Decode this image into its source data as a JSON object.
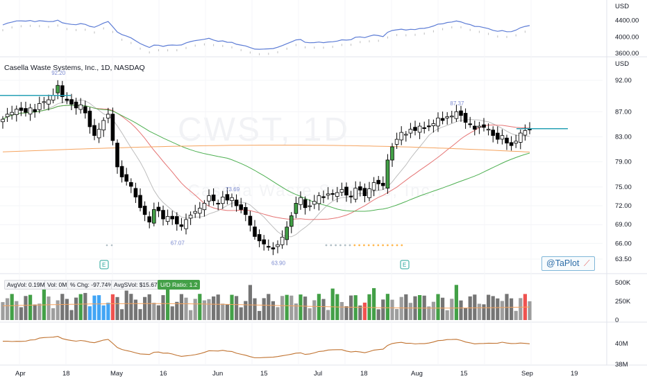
{
  "header": {
    "symbol_title": "Casella Waste Systems, Inc., 1D, NASDAQ",
    "watermark": "CWST, 1D",
    "watermark_sub": "Casella Waste Systems, Inc.",
    "brand_label": "@TaPlot"
  },
  "stats": {
    "avg_vol": "AvgVol: 0.19M",
    "vol": "Vol: 0M",
    "pct_chg": "% Chg: -97.74%",
    "avg_dollar_vol": "AvgSVol: $15.67M",
    "ud_ratio": "U/D Ratio: 1.2"
  },
  "colors": {
    "up": "#43a047",
    "down": "#000000",
    "ma_red": "#e57373",
    "ma_green": "#4caf50",
    "ma_orange": "#f5a25d",
    "ma_gray": "#bdbdbd",
    "rs_line": "#5b7bd5",
    "teal": "#26a0b5",
    "vol_gray": "#757575",
    "vol_blue": "#42a5f5",
    "vol_red": "#ef5350",
    "rs_brown": "#c0722f"
  },
  "chart_data": [
    {
      "type": "line",
      "name": "relative-strength-panel",
      "y_unit": "USD",
      "y_ticks": [
        "4400.00",
        "4000.00",
        "3600.00"
      ],
      "ylim": [
        3550,
        4700
      ]
    },
    {
      "type": "candlestick",
      "name": "price-panel",
      "y_unit": "USD",
      "y_ticks": [
        "92.00",
        "87.00",
        "83.00",
        "79.00",
        "75.00",
        "72.00",
        "69.00",
        "66.00",
        "63.50"
      ],
      "x_ticks": [
        "Apr",
        "18",
        "May",
        "16",
        "Jun",
        "15",
        "Jul",
        "18",
        "Aug",
        "15",
        "Sep",
        "19"
      ],
      "annotations": [
        {
          "label": "92.20",
          "type": "high"
        },
        {
          "label": "67.07",
          "type": "low"
        },
        {
          "label": "73.69",
          "type": "high"
        },
        {
          "label": "63.90",
          "type": "low"
        },
        {
          "label": "87.37",
          "type": "high"
        }
      ],
      "earnings_markers": [
        "E",
        "E"
      ],
      "closes": [
        85.8,
        86.6,
        86.9,
        87.4,
        87.2,
        86.9,
        87.6,
        87.0,
        88.3,
        88.6,
        88.9,
        89.6,
        91.2,
        89.4,
        88.8,
        88.2,
        87.6,
        88.1,
        86.8,
        84.6,
        83.2,
        84.2,
        85.6,
        86.6,
        82.4,
        78.2,
        76.6,
        75.9,
        75.1,
        73.4,
        71.7,
        70.6,
        69.4,
        71.4,
        71.2,
        69.9,
        70.3,
        69.9,
        69.1,
        68.7,
        69.8,
        70.5,
        71.1,
        71.6,
        72.4,
        73.6,
        72.8,
        72.4,
        73.4,
        72.9,
        73.3,
        72.0,
        71.4,
        70.6,
        68.9,
        67.1,
        66.4,
        65.9,
        65.4,
        65.1,
        65.8,
        67.0,
        68.6,
        70.4,
        72.4,
        73.3,
        71.7,
        72.0,
        72.7,
        73.6,
        73.3,
        73.9,
        73.9,
        74.1,
        74.6,
        73.7,
        73.4,
        74.8,
        74.5,
        73.6,
        74.7,
        75.7,
        75.5,
        75.2,
        79.3,
        81.4,
        82.6,
        83.7,
        83.4,
        84.2,
        84.0,
        84.7,
        84.4,
        84.6,
        85.1,
        86.0,
        85.6,
        86.2,
        86.3,
        87.0,
        86.4,
        85.3,
        85.0,
        84.2,
        84.7,
        84.5,
        84.2,
        83.2,
        82.6,
        83.2,
        82.0,
        81.6,
        82.3,
        83.6,
        84.0,
        84.1
      ],
      "ma_fast": [],
      "volumes": []
    },
    {
      "type": "bar",
      "name": "volume-panel",
      "y_ticks": [
        "500K",
        "250K",
        "0"
      ],
      "ylim": [
        0,
        500
      ]
    },
    {
      "type": "line",
      "name": "lower-indicator-panel",
      "y_ticks": [
        "40M",
        "38M"
      ]
    }
  ]
}
